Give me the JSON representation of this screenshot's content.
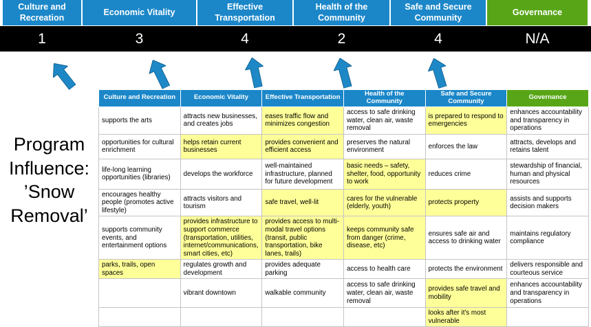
{
  "title": {
    "text": "Program Influence: ’Snow Removal’"
  },
  "colors": {
    "blue": "#1b87c9",
    "green": "#58a618",
    "hl": "#ffff99",
    "score_bg": "#000000",
    "arrow": "#1e88c7"
  },
  "scoreboard": {
    "columns": [
      {
        "label": "Culture and Recreation",
        "score": "1"
      },
      {
        "label": "Economic Vitality",
        "score": "3"
      },
      {
        "label": "Effective Transportation",
        "score": "4"
      },
      {
        "label": "Health of the Community",
        "score": "2"
      },
      {
        "label": "Safe and Secure Community",
        "score": "4"
      },
      {
        "label": "Governance",
        "score": "N/A"
      }
    ]
  },
  "matrix": {
    "headers": [
      "Culture and Recreation",
      "Economic Vitality",
      "Effective Transportation",
      "Health of the Community",
      "Safe and Secure Community",
      "Governance"
    ],
    "rows": [
      [
        {
          "text": "supports the arts",
          "highlight": false
        },
        {
          "text": "attracts new businesses, and creates jobs",
          "highlight": false
        },
        {
          "text": "eases traffic flow and minimizes congestion",
          "highlight": true
        },
        {
          "text": "access to safe drinking water, clean air, waste removal",
          "highlight": false
        },
        {
          "text": "is prepared to respond to emergencies",
          "highlight": true
        },
        {
          "text": "enhances accountability and transparency in operations",
          "highlight": false
        }
      ],
      [
        {
          "text": "opportunities for cultural enrichment",
          "highlight": false
        },
        {
          "text": "helps retain current businesses",
          "highlight": true
        },
        {
          "text": "provides convenient and efficient access",
          "highlight": true
        },
        {
          "text": "preserves the natural environment",
          "highlight": false
        },
        {
          "text": "enforces the law",
          "highlight": false
        },
        {
          "text": "attracts, develops and retains talent",
          "highlight": false
        }
      ],
      [
        {
          "text": "life-long learning opportunities (libraries)",
          "highlight": false
        },
        {
          "text": "develops the workforce",
          "highlight": false
        },
        {
          "text": "well-maintained infrastructure, planned for future development",
          "highlight": false
        },
        {
          "text": "basic needs – safety, shelter, food, opportunity to work",
          "highlight": true
        },
        {
          "text": "reduces crime",
          "highlight": false
        },
        {
          "text": "stewardship of financial, human and physical resources",
          "highlight": false
        }
      ],
      [
        {
          "text": "encourages healthy people (promotes active lifestyle)",
          "highlight": false
        },
        {
          "text": "attracts visitors and tourism",
          "highlight": false
        },
        {
          "text": "safe travel, well-lit",
          "highlight": true
        },
        {
          "text": "cares for the vulnerable (elderly, youth)",
          "highlight": true
        },
        {
          "text": "protects property",
          "highlight": true
        },
        {
          "text": "assists and supports decision makers",
          "highlight": false
        }
      ],
      [
        {
          "text": "supports community events, and entertainment options",
          "highlight": false
        },
        {
          "text": "provides infrastructure to support commerce (transportation, utilities, internet/communications, smart cities, etc)",
          "highlight": true
        },
        {
          "text": "provides access to multi-modal travel options (transit, public transportation, bike lanes, trails)",
          "highlight": true
        },
        {
          "text": "keeps community safe from danger (crime, disease, etc)",
          "highlight": true
        },
        {
          "text": "ensures safe air and access to drinking water",
          "highlight": false
        },
        {
          "text": "maintains regulatory compliance",
          "highlight": false
        }
      ],
      [
        {
          "text": "parks, trails, open spaces",
          "highlight": true
        },
        {
          "text": "regulates growth and development",
          "highlight": false
        },
        {
          "text": "provides adequate parking",
          "highlight": false
        },
        {
          "text": "access to health care",
          "highlight": false
        },
        {
          "text": "protects the environment",
          "highlight": false
        },
        {
          "text": "delivers responsible and courteous service",
          "highlight": false
        }
      ],
      [
        {
          "text": "",
          "highlight": false
        },
        {
          "text": "vibrant downtown",
          "highlight": false
        },
        {
          "text": "walkable community",
          "highlight": false
        },
        {
          "text": "access to safe drinking water, clean air, waste removal",
          "highlight": false
        },
        {
          "text": "provides safe travel and mobility",
          "highlight": true
        },
        {
          "text": "enhances accountability and transparency in operations",
          "highlight": false
        }
      ],
      [
        {
          "text": "",
          "highlight": false
        },
        {
          "text": "",
          "highlight": false
        },
        {
          "text": "",
          "highlight": false
        },
        {
          "text": "",
          "highlight": false
        },
        {
          "text": "looks after it's most vulnerable",
          "highlight": true
        },
        {
          "text": "",
          "highlight": false
        }
      ]
    ]
  }
}
